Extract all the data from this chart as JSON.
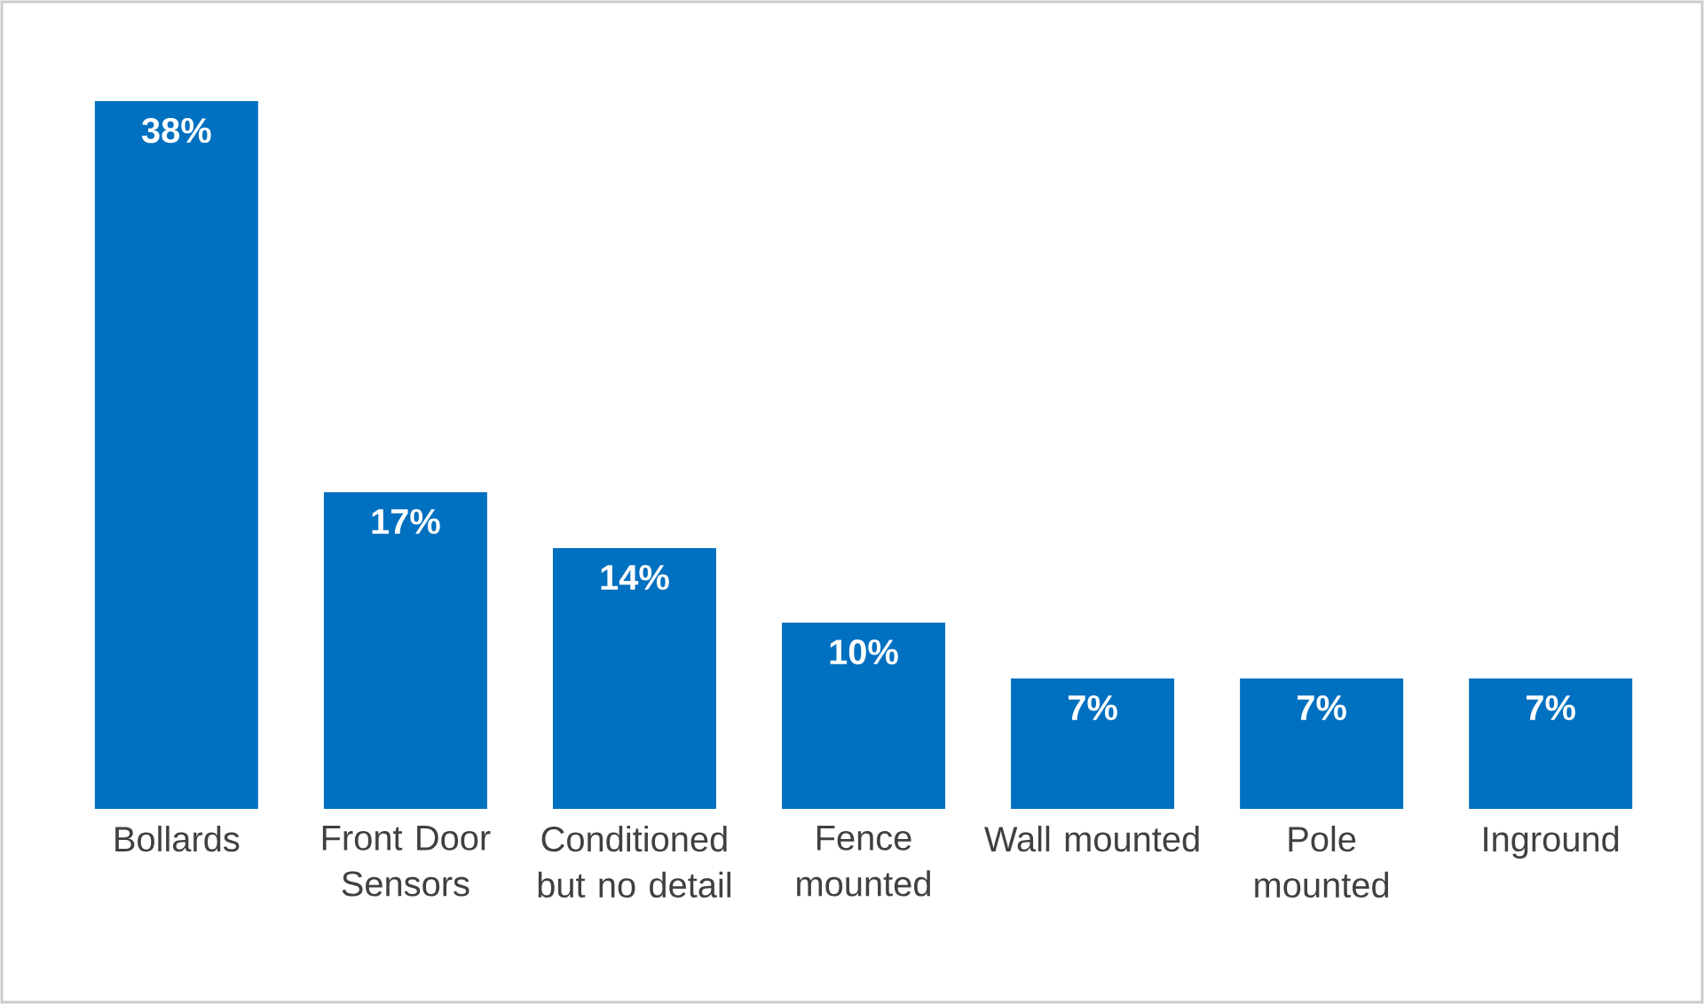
{
  "chart_data": {
    "type": "bar",
    "categories": [
      "Bollards",
      "Front Door Sensors",
      "Conditioned but no detail",
      "Fence mounted",
      "Wall mounted",
      "Pole mounted",
      "Inground"
    ],
    "values": [
      38,
      17,
      14,
      10,
      7,
      7,
      7
    ],
    "value_labels": [
      "38%",
      "17%",
      "14%",
      "10%",
      "7%",
      "7%",
      "7%"
    ],
    "color": "#0070c0"
  }
}
